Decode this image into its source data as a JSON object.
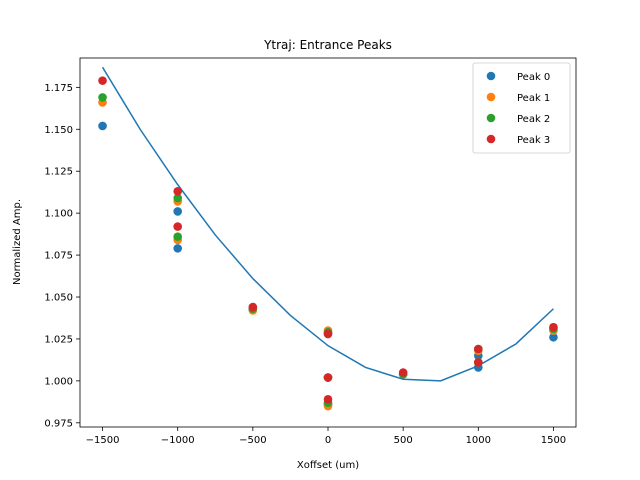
{
  "chart_data": {
    "type": "scatter",
    "title": "Ytraj: Entrance Peaks",
    "xlabel": "Xoffset (um)",
    "ylabel": "Normalized Amp.",
    "xlim": [
      -1650,
      1650
    ],
    "ylim": [
      0.9725,
      1.1925
    ],
    "xticks": [
      -1500,
      -1000,
      -500,
      0,
      500,
      1000,
      1500
    ],
    "yticks": [
      0.975,
      1.0,
      1.025,
      1.05,
      1.075,
      1.1,
      1.125,
      1.15,
      1.175
    ],
    "xtick_labels": [
      "−1500",
      "−1000",
      "−500",
      "0",
      "500",
      "1000",
      "1500"
    ],
    "ytick_labels": [
      "0.975",
      "1.000",
      "1.025",
      "1.050",
      "1.075",
      "1.100",
      "1.125",
      "1.150",
      "1.175"
    ],
    "grid": false,
    "legend_position": "top-right",
    "series": [
      {
        "name": "Peak 0",
        "color": "#1f77b4",
        "points": [
          {
            "x": -1500,
            "y": 1.152
          },
          {
            "x": -1000,
            "y": 1.101
          },
          {
            "x": -1000,
            "y": 1.079
          },
          {
            "x": -500,
            "y": 1.043
          },
          {
            "x": 0,
            "y": 1.028
          },
          {
            "x": 0,
            "y": 1.002
          },
          {
            "x": 0,
            "y": 0.986
          },
          {
            "x": 500,
            "y": 1.004
          },
          {
            "x": 1000,
            "y": 1.015
          },
          {
            "x": 1000,
            "y": 1.008
          },
          {
            "x": 1500,
            "y": 1.026
          }
        ]
      },
      {
        "name": "Peak 1",
        "color": "#ff7f0e",
        "points": [
          {
            "x": -1500,
            "y": 1.166
          },
          {
            "x": -1000,
            "y": 1.107
          },
          {
            "x": -1000,
            "y": 1.084
          },
          {
            "x": -500,
            "y": 1.042
          },
          {
            "x": 0,
            "y": 1.03
          },
          {
            "x": 0,
            "y": 1.002
          },
          {
            "x": 0,
            "y": 0.985
          },
          {
            "x": 500,
            "y": 1.004
          },
          {
            "x": 1000,
            "y": 1.018
          },
          {
            "x": 1000,
            "y": 1.011
          },
          {
            "x": 1500,
            "y": 1.03
          }
        ]
      },
      {
        "name": "Peak 2",
        "color": "#2ca02c",
        "points": [
          {
            "x": -1500,
            "y": 1.169
          },
          {
            "x": -1000,
            "y": 1.109
          },
          {
            "x": -1000,
            "y": 1.086
          },
          {
            "x": -500,
            "y": 1.043
          },
          {
            "x": 0,
            "y": 1.029
          },
          {
            "x": 0,
            "y": 1.002
          },
          {
            "x": 0,
            "y": 0.987
          },
          {
            "x": 500,
            "y": 1.004
          },
          {
            "x": 1000,
            "y": 1.019
          },
          {
            "x": 1000,
            "y": 1.011
          },
          {
            "x": 1500,
            "y": 1.031
          }
        ]
      },
      {
        "name": "Peak 3",
        "color": "#d62728",
        "points": [
          {
            "x": -1500,
            "y": 1.179
          },
          {
            "x": -1000,
            "y": 1.113
          },
          {
            "x": -1000,
            "y": 1.092
          },
          {
            "x": -500,
            "y": 1.044
          },
          {
            "x": 0,
            "y": 1.028
          },
          {
            "x": 0,
            "y": 1.002
          },
          {
            "x": 0,
            "y": 0.989
          },
          {
            "x": 500,
            "y": 1.005
          },
          {
            "x": 1000,
            "y": 1.019
          },
          {
            "x": 1000,
            "y": 1.011
          },
          {
            "x": 1500,
            "y": 1.032
          }
        ]
      }
    ],
    "fit_curve": {
      "type": "line",
      "color": "#1f77b4",
      "x": [
        -1500,
        -1250,
        -1000,
        -750,
        -500,
        -250,
        0,
        250,
        500,
        750,
        1000,
        1250,
        1500
      ],
      "y": [
        1.187,
        1.15,
        1.117,
        1.087,
        1.061,
        1.039,
        1.021,
        1.008,
        1.001,
        1.0,
        1.009,
        1.022,
        1.043
      ]
    }
  }
}
